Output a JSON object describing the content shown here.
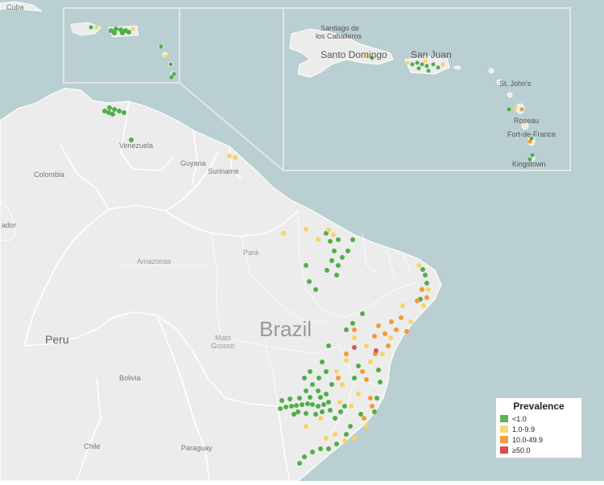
{
  "map": {
    "labels": {
      "brazil": "Brazil",
      "peru": "Peru",
      "colombia": "Colombia",
      "venezuela": "Venezuela",
      "guyana": "Guyana",
      "suriname": "Suriname",
      "bolivia": "Bolivia",
      "chile": "Chile",
      "paraguay": "Paraguay",
      "ecuador": "ador",
      "cuba": "Cuba",
      "amazonas": "Amazonas",
      "para": "Pará",
      "mato": "Mato",
      "grosso": "Grosso"
    },
    "inset_labels": {
      "santiago1": "Santiago de",
      "santiago2": "los Caballeros",
      "santo_domingo": "Santo Domingo",
      "san_juan": "San Juan",
      "st_johns": "St. John's",
      "roseau": "Roseau",
      "fort_de_france": "Fort-de-France",
      "kingstown": "Kingstown"
    }
  },
  "legend": {
    "title": "Prevalence",
    "items": [
      {
        "label": "<1.0",
        "color": "#5cb55c"
      },
      {
        "label": "1.0-9.9",
        "color": "#f7d872"
      },
      {
        "label": "10.0-49.9",
        "color": "#f59b40"
      },
      {
        "label": "≥50.0",
        "color": "#dd4c4c"
      }
    ]
  },
  "colors": {
    "ocean": "#b9cfd2",
    "land": "#ececec",
    "border": "#ffffff",
    "low": "#4fae48",
    "mid": "#f7d563",
    "high": "#f39a35",
    "very_high": "#d9534f"
  }
}
